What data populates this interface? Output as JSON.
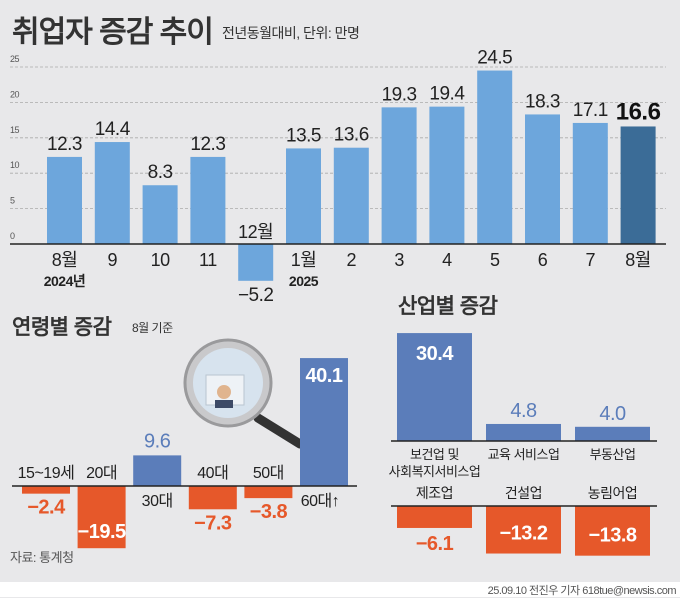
{
  "colors": {
    "background": "#e8e8ea",
    "monthly_bar": "#6da6dc",
    "monthly_bar_highlight": "#3b6c97",
    "positive": "#5b7dba",
    "negative": "#e6582a",
    "negative_text": "#e6582a",
    "positive_text": "#5b7dba"
  },
  "chart_data": [
    {
      "type": "bar",
      "title": "취업자 증감 추이",
      "subtitle": "전년동월대비, 단위: 만명",
      "categories": [
        "8월",
        "9",
        "10",
        "11",
        "12월",
        "1월",
        "2",
        "3",
        "4",
        "5",
        "6",
        "7",
        "8월"
      ],
      "year_labels": [
        {
          "at": "8월",
          "label": "2024년"
        },
        {
          "at": "1월",
          "label": "2025"
        }
      ],
      "values": [
        12.3,
        14.4,
        8.3,
        12.3,
        -5.2,
        13.5,
        13.6,
        19.3,
        19.4,
        24.5,
        18.3,
        17.1,
        16.6
      ],
      "value_labels": [
        "12.3",
        "14.4",
        "8.3",
        "12.3",
        "−5.2",
        "13.5",
        "13.6",
        "19.3",
        "19.4",
        "24.5",
        "18.3",
        "17.1",
        "16.6"
      ],
      "highlight_index": 12,
      "yticks": [
        "0",
        "5",
        "10",
        "15",
        "20",
        "25"
      ],
      "ylim": [
        0,
        25
      ],
      "grid": true,
      "xlabel": "",
      "ylabel": ""
    },
    {
      "type": "bar",
      "title": "연령별 증감",
      "subtitle": "8월 기준",
      "categories": [
        "15~19세",
        "20대",
        "30대",
        "40대",
        "50대",
        "60대↑"
      ],
      "values": [
        -2.4,
        -19.5,
        9.6,
        -7.3,
        -3.8,
        40.1
      ],
      "value_labels": [
        "−2.4",
        "−19.5",
        "9.6",
        "−7.3",
        "−3.8",
        "40.1"
      ]
    },
    {
      "type": "bar",
      "title": "산업별 증감",
      "groups": [
        {
          "categories": [
            "보건업 및|사회복지서비스업",
            "교육 서비스업",
            "부동산업"
          ],
          "values": [
            30.4,
            4.8,
            4.0
          ],
          "value_labels": [
            "30.4",
            "4.8",
            "4.0"
          ]
        },
        {
          "categories": [
            "제조업",
            "건설업",
            "농림어업"
          ],
          "values": [
            -6.1,
            -13.2,
            -13.8
          ],
          "value_labels": [
            "−6.1",
            "−13.2",
            "−13.8"
          ]
        }
      ]
    }
  ],
  "source": "자료: 통계청",
  "credit": "25.09.10 전진우 기자 618tue@newsis.com"
}
